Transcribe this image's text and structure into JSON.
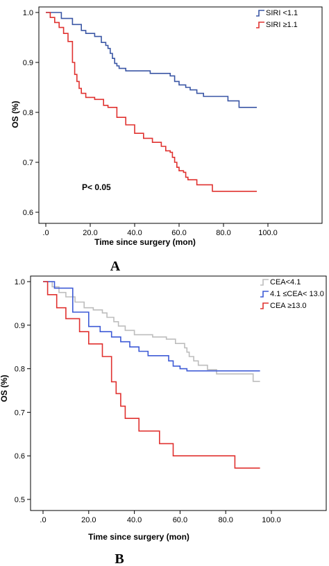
{
  "chart_data": [
    {
      "type": "line",
      "panel_label": "A",
      "title": "",
      "xlabel": "Time since surgery (mon)",
      "ylabel": "OS (%)",
      "xlim": [
        0,
        100
      ],
      "ylim": [
        0.6,
        1.0
      ],
      "x_ticks": [
        ".0",
        "20.0",
        "40.0",
        "60.0",
        "80.0",
        "100.0"
      ],
      "y_ticks": [
        "0.6",
        "0.7",
        "0.8",
        "0.9",
        "1.0"
      ],
      "annotation": "P< 0.05",
      "legend": "top-right",
      "grid": false,
      "series": [
        {
          "name": "SIRI <1.1",
          "color": "#3a56a5",
          "x": [
            0,
            5,
            7,
            12,
            16,
            18,
            22,
            25,
            27,
            28,
            29,
            30,
            31,
            32,
            33,
            36,
            40,
            47,
            52,
            56,
            58,
            60,
            63,
            65,
            68,
            71,
            75,
            82,
            87,
            95
          ],
          "y": [
            1.0,
            1.0,
            0.988,
            0.976,
            0.964,
            0.958,
            0.952,
            0.94,
            0.934,
            0.928,
            0.918,
            0.908,
            0.898,
            0.893,
            0.888,
            0.883,
            0.883,
            0.878,
            0.878,
            0.873,
            0.862,
            0.855,
            0.85,
            0.845,
            0.838,
            0.832,
            0.832,
            0.823,
            0.81,
            0.81
          ]
        },
        {
          "name": "SIRI ≥1.1",
          "color": "#e0312f",
          "x": [
            0,
            2,
            4,
            6,
            8,
            10,
            12,
            13,
            14,
            15,
            16,
            18,
            22,
            26,
            28,
            32,
            36,
            40,
            44,
            48,
            52,
            54,
            56,
            57,
            58,
            59,
            60,
            62,
            63,
            64,
            68,
            75,
            95
          ],
          "y": [
            1.0,
            0.99,
            0.98,
            0.97,
            0.958,
            0.942,
            0.9,
            0.876,
            0.862,
            0.848,
            0.838,
            0.83,
            0.826,
            0.814,
            0.81,
            0.79,
            0.775,
            0.758,
            0.748,
            0.74,
            0.732,
            0.723,
            0.72,
            0.71,
            0.7,
            0.69,
            0.683,
            0.68,
            0.67,
            0.665,
            0.655,
            0.642,
            0.642
          ]
        }
      ]
    },
    {
      "type": "line",
      "panel_label": "B",
      "title": "",
      "xlabel": "Time since surgery (mon)",
      "ylabel": "OS (%)",
      "xlim": [
        0,
        100
      ],
      "ylim": [
        0.5,
        1.0
      ],
      "x_ticks": [
        ".0",
        "20.0",
        "40.0",
        "60.0",
        "80.0",
        "100.0"
      ],
      "y_ticks": [
        "0.5",
        "0.6",
        "0.7",
        "0.8",
        "0.9",
        "1.0"
      ],
      "legend": "top-right",
      "grid": false,
      "series": [
        {
          "name": "CEA<4.1",
          "color": "#bdbdbd",
          "x": [
            0,
            4,
            7,
            10,
            14,
            18,
            22,
            26,
            28,
            31,
            33,
            36,
            40,
            48,
            54,
            58,
            62,
            63,
            64,
            66,
            68,
            72,
            76,
            92,
            95
          ],
          "y": [
            1.0,
            0.988,
            0.975,
            0.965,
            0.953,
            0.94,
            0.935,
            0.928,
            0.918,
            0.908,
            0.898,
            0.888,
            0.878,
            0.873,
            0.868,
            0.858,
            0.848,
            0.838,
            0.828,
            0.818,
            0.808,
            0.798,
            0.788,
            0.771,
            0.771
          ]
        },
        {
          "name": "4.1 ≤CEA< 13.0",
          "color": "#3d5ad6",
          "x": [
            0,
            5,
            13,
            20,
            25,
            30,
            34,
            38,
            42,
            46,
            55,
            57,
            60,
            63,
            67,
            73,
            95
          ],
          "y": [
            1.0,
            0.985,
            0.93,
            0.897,
            0.885,
            0.873,
            0.862,
            0.85,
            0.84,
            0.83,
            0.818,
            0.806,
            0.8,
            0.795,
            0.795,
            0.795,
            0.795
          ]
        },
        {
          "name": "CEA ≥13.0",
          "color": "#e0312f",
          "x": [
            0,
            2,
            6,
            10,
            16,
            20,
            26,
            30,
            32,
            34,
            36,
            42,
            51,
            57,
            68,
            84,
            95
          ],
          "y": [
            1.0,
            0.97,
            0.94,
            0.915,
            0.885,
            0.857,
            0.828,
            0.77,
            0.743,
            0.714,
            0.686,
            0.657,
            0.628,
            0.6,
            0.6,
            0.572,
            0.572
          ]
        }
      ]
    }
  ]
}
